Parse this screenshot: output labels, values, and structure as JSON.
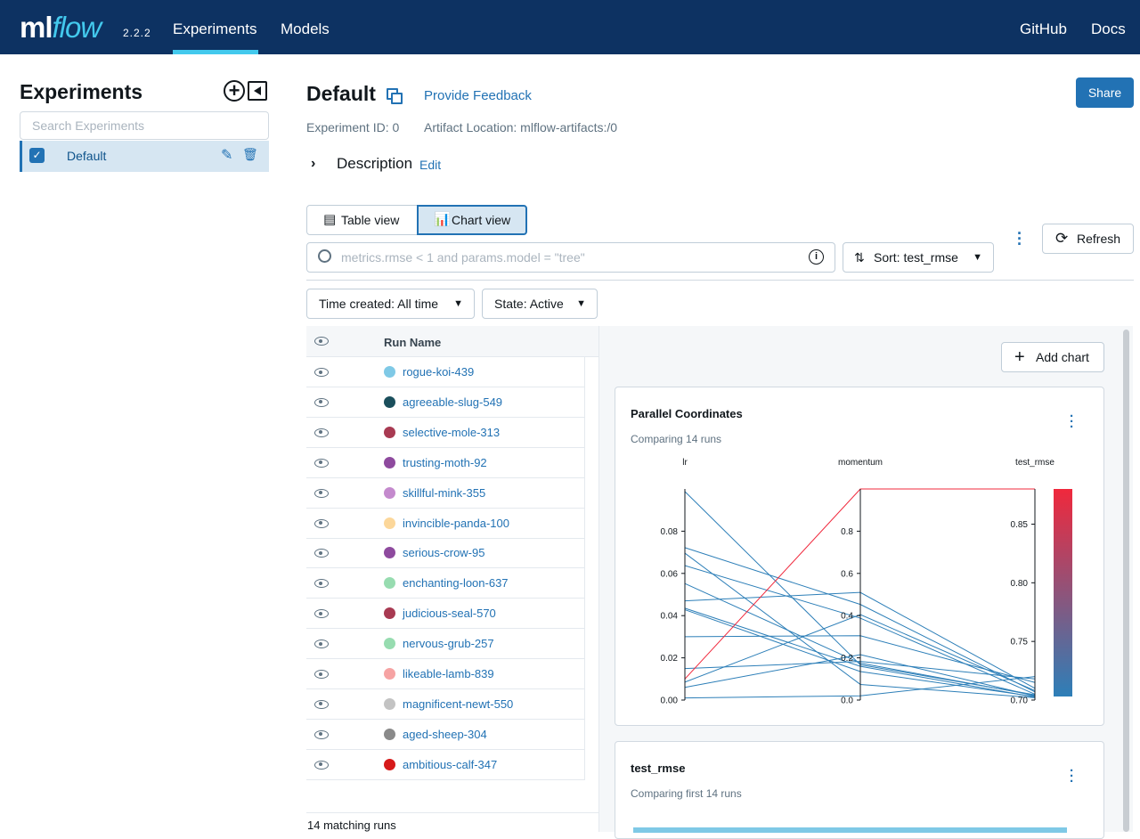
{
  "topbar": {
    "logo_ml": "ml",
    "logo_flow": "flow",
    "version": "2.2.2",
    "nav": [
      {
        "label": "Experiments",
        "active": true
      },
      {
        "label": "Models",
        "active": false
      }
    ],
    "right_links": [
      "GitHub",
      "Docs"
    ],
    "accent_color": "#43c9ed",
    "bar_color": "#0d3262"
  },
  "sidebar": {
    "title": "Experiments",
    "search_placeholder": "Search Experiments",
    "experiments": [
      {
        "name": "Default",
        "checked": true
      }
    ]
  },
  "experiment": {
    "name": "Default",
    "feedback_link": "Provide Feedback",
    "share_label": "Share",
    "id_text": "Experiment ID: 0",
    "artifact_text": "Artifact Location: mlflow-artifacts:/0",
    "description_label": "Description",
    "description_edit": "Edit"
  },
  "toolbar": {
    "table_view": "Table view",
    "chart_view": "Chart view",
    "active_view": "chart",
    "search_placeholder": "metrics.rmse < 1 and params.model = \"tree\"",
    "sort_label": "Sort: test_rmse",
    "refresh_label": "Refresh",
    "time_filter": "Time created: All time",
    "state_filter": "State: Active"
  },
  "runs": {
    "header": "Run Name",
    "rows": [
      {
        "name": "rogue-koi-439",
        "color": "#7fc9e6"
      },
      {
        "name": "agreeable-slug-549",
        "color": "#1b4f5c"
      },
      {
        "name": "selective-mole-313",
        "color": "#a83a52"
      },
      {
        "name": "trusting-moth-92",
        "color": "#8e4a9e"
      },
      {
        "name": "skillful-mink-355",
        "color": "#c48acd"
      },
      {
        "name": "invincible-panda-100",
        "color": "#fcd79a"
      },
      {
        "name": "serious-crow-95",
        "color": "#8e4a9e"
      },
      {
        "name": "enchanting-loon-637",
        "color": "#97dcb0"
      },
      {
        "name": "judicious-seal-570",
        "color": "#a83a52"
      },
      {
        "name": "nervous-grub-257",
        "color": "#97dcb0"
      },
      {
        "name": "likeable-lamb-839",
        "color": "#f6a3a3"
      },
      {
        "name": "magnificent-newt-550",
        "color": "#c3c3c3"
      },
      {
        "name": "aged-sheep-304",
        "color": "#8a8a8a"
      },
      {
        "name": "ambitious-calf-347",
        "color": "#d61a1a"
      }
    ],
    "match_count": "14 matching runs"
  },
  "charts": {
    "add_chart_label": "Add chart",
    "cards": [
      {
        "title": "Parallel Coordinates",
        "subtitle": "Comparing 14 runs"
      },
      {
        "title": "test_rmse",
        "subtitle": "Comparing first 14 runs"
      }
    ]
  },
  "chart_data": {
    "type": "parallel_coordinates",
    "axes": [
      {
        "name": "lr",
        "range": [
          0,
          0.1
        ],
        "ticks": [
          "0.00",
          "0.02",
          "0.04",
          "0.06",
          "0.08"
        ]
      },
      {
        "name": "momentum",
        "range": [
          0,
          1
        ],
        "ticks": [
          "0.0",
          "0.2",
          "0.4",
          "0.6",
          "0.8"
        ]
      },
      {
        "name": "test_rmse",
        "range": [
          0.7,
          0.88
        ],
        "ticks": [
          "0.70",
          "0.75",
          "0.80",
          "0.85"
        ]
      }
    ],
    "colorscale": [
      "#2d7fb8",
      "#f0283c"
    ],
    "lines": [
      {
        "lr": 0.0988,
        "momentum": 0.167,
        "test_rmse": 0.7045,
        "highlight": false
      },
      {
        "lr": 0.0722,
        "momentum": 0.453,
        "test_rmse": 0.707,
        "highlight": false
      },
      {
        "lr": 0.0696,
        "momentum": 0.074,
        "test_rmse": 0.702,
        "highlight": false
      },
      {
        "lr": 0.0637,
        "momentum": 0.388,
        "test_rmse": 0.705,
        "highlight": false
      },
      {
        "lr": 0.0552,
        "momentum": 0.175,
        "test_rmse": 0.704,
        "highlight": false
      },
      {
        "lr": 0.047,
        "momentum": 0.51,
        "test_rmse": 0.71,
        "highlight": false
      },
      {
        "lr": 0.0435,
        "momentum": 0.16,
        "test_rmse": 0.7025,
        "highlight": false
      },
      {
        "lr": 0.0428,
        "momentum": 0.135,
        "test_rmse": 0.703,
        "highlight": false
      },
      {
        "lr": 0.03,
        "momentum": 0.305,
        "test_rmse": 0.715,
        "highlight": false
      },
      {
        "lr": 0.0149,
        "momentum": 0.183,
        "test_rmse": 0.718,
        "highlight": false
      },
      {
        "lr": 0.0085,
        "momentum": 0.405,
        "test_rmse": 0.708,
        "highlight": false
      },
      {
        "lr": 0.006,
        "momentum": 0.215,
        "test_rmse": 0.7035,
        "highlight": false
      },
      {
        "lr": 0.001,
        "momentum": 0.02,
        "test_rmse": 0.72,
        "highlight": false
      },
      {
        "lr": 0.01,
        "momentum": 1.0,
        "test_rmse": 0.88,
        "highlight": true
      }
    ]
  }
}
